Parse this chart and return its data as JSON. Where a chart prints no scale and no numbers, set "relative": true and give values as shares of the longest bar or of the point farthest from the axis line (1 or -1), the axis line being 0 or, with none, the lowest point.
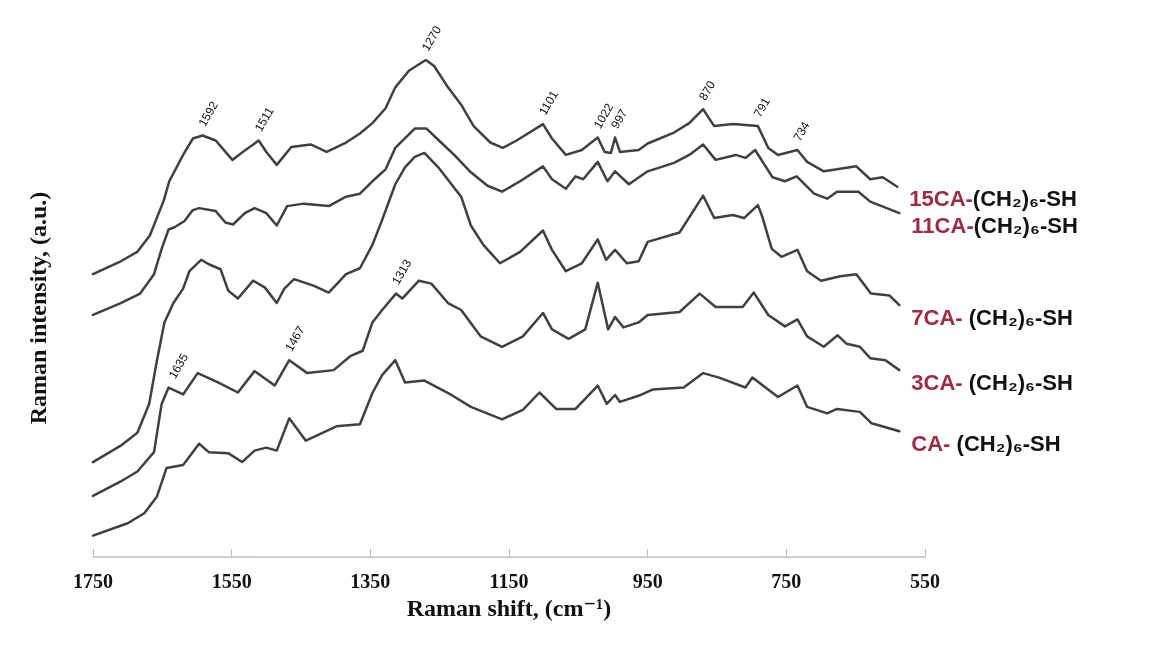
{
  "chart_data": {
    "type": "line",
    "relative": true,
    "xlabel": "Raman shift, (cm⁻¹)",
    "ylabel": "Raman intensity, (a.u.)",
    "xlim": [
      1750,
      550
    ],
    "xticks": [
      1750,
      1550,
      1350,
      1150,
      950,
      750,
      550
    ],
    "grid": false,
    "legend": false,
    "marker": "none",
    "line_style": "solid",
    "series": [
      {
        "name": "15CA-(CH₂)₆-SH",
        "color": "#404040",
        "x": [
          1750,
          1710,
          1686,
          1668,
          1648,
          1640,
          1620,
          1606,
          1592,
          1573,
          1549,
          1534,
          1511,
          1500,
          1485,
          1464,
          1436,
          1413,
          1385,
          1365,
          1347,
          1328,
          1314,
          1294,
          1270,
          1258,
          1238,
          1219,
          1201,
          1177,
          1159,
          1139,
          1101,
          1088,
          1068,
          1045,
          1022,
          1012,
          1003,
          997,
          990,
          963,
          950,
          912,
          890,
          870,
          854,
          827,
          791,
          776,
          762,
          734,
          720,
          696,
          677,
          649,
          629,
          611,
          590
        ],
        "values": [
          0.569,
          0.595,
          0.614,
          0.647,
          0.717,
          0.756,
          0.809,
          0.842,
          0.848,
          0.838,
          0.799,
          0.815,
          0.838,
          0.815,
          0.789,
          0.825,
          0.83,
          0.815,
          0.834,
          0.852,
          0.873,
          0.903,
          0.945,
          0.979,
          1,
          0.988,
          0.945,
          0.91,
          0.867,
          0.834,
          0.823,
          0.838,
          0.871,
          0.842,
          0.809,
          0.819,
          0.844,
          0.815,
          0.813,
          0.844,
          0.815,
          0.819,
          0.832,
          0.854,
          0.873,
          0.901,
          0.867,
          0.871,
          0.867,
          0.823,
          0.809,
          0.819,
          0.795,
          0.776,
          0.78,
          0.786,
          0.76,
          0.764,
          0.745
        ]
      },
      {
        "name": "11CA-(CH₂)₆-SH",
        "color": "#404040",
        "x": [
          1750,
          1710,
          1682,
          1662,
          1651,
          1641,
          1633,
          1618,
          1606,
          1597,
          1573,
          1559,
          1548,
          1531,
          1517,
          1500,
          1485,
          1470,
          1446,
          1410,
          1385,
          1365,
          1347,
          1328,
          1314,
          1286,
          1269,
          1248,
          1229,
          1205,
          1181,
          1160,
          1134,
          1101,
          1088,
          1068,
          1054,
          1043,
          1022,
          1008,
          997,
          977,
          950,
          912,
          890,
          870,
          852,
          823,
          809,
          795,
          770,
          752,
          735,
          710,
          691,
          677,
          646,
          629,
          587
        ],
        "values": [
          0.487,
          0.511,
          0.53,
          0.569,
          0.62,
          0.659,
          0.663,
          0.676,
          0.698,
          0.702,
          0.696,
          0.673,
          0.669,
          0.692,
          0.702,
          0.692,
          0.667,
          0.706,
          0.711,
          0.706,
          0.725,
          0.731,
          0.756,
          0.78,
          0.823,
          0.862,
          0.862,
          0.834,
          0.809,
          0.774,
          0.747,
          0.735,
          0.756,
          0.786,
          0.76,
          0.741,
          0.766,
          0.76,
          0.795,
          0.756,
          0.776,
          0.75,
          0.776,
          0.793,
          0.809,
          0.83,
          0.799,
          0.809,
          0.803,
          0.819,
          0.764,
          0.756,
          0.766,
          0.731,
          0.721,
          0.735,
          0.735,
          0.715,
          0.692
        ]
      },
      {
        "name": "7CA- (CH₂)₆-SH",
        "color": "#404040",
        "x": [
          1750,
          1710,
          1686,
          1669,
          1658,
          1647,
          1634,
          1620,
          1611,
          1594,
          1583,
          1566,
          1555,
          1541,
          1519,
          1502,
          1485,
          1474,
          1460,
          1432,
          1410,
          1385,
          1365,
          1347,
          1333,
          1314,
          1300,
          1286,
          1272,
          1252,
          1233,
          1219,
          1205,
          1187,
          1163,
          1134,
          1101,
          1088,
          1068,
          1045,
          1022,
          1010,
          997,
          980,
          963,
          950,
          904,
          870,
          854,
          827,
          811,
          791,
          785,
          771,
          757,
          734,
          720,
          700,
          672,
          649,
          628,
          601,
          587
        ],
        "values": [
          0.191,
          0.224,
          0.25,
          0.308,
          0.394,
          0.472,
          0.511,
          0.54,
          0.575,
          0.598,
          0.589,
          0.579,
          0.536,
          0.52,
          0.556,
          0.542,
          0.511,
          0.54,
          0.559,
          0.546,
          0.532,
          0.569,
          0.581,
          0.628,
          0.678,
          0.75,
          0.784,
          0.805,
          0.813,
          0.784,
          0.75,
          0.725,
          0.667,
          0.628,
          0.591,
          0.614,
          0.657,
          0.618,
          0.575,
          0.591,
          0.639,
          0.598,
          0.618,
          0.591,
          0.595,
          0.634,
          0.653,
          0.727,
          0.682,
          0.688,
          0.682,
          0.708,
          0.686,
          0.62,
          0.604,
          0.618,
          0.575,
          0.556,
          0.565,
          0.569,
          0.53,
          0.526,
          0.507
        ]
      },
      {
        "name": "3CA- (CH₂)₆-SH",
        "color": "#404040",
        "x": [
          1750,
          1710,
          1686,
          1662,
          1651,
          1641,
          1620,
          1599,
          1569,
          1541,
          1517,
          1488,
          1467,
          1441,
          1403,
          1379,
          1361,
          1347,
          1333,
          1313,
          1304,
          1280,
          1262,
          1238,
          1219,
          1191,
          1160,
          1130,
          1101,
          1088,
          1064,
          1040,
          1022,
          1007,
          997,
          985,
          963,
          950,
          904,
          875,
          852,
          813,
          797,
          776,
          752,
          734,
          720,
          696,
          676,
          663,
          644,
          629,
          607,
          587
        ],
        "values": [
          0.123,
          0.152,
          0.172,
          0.211,
          0.308,
          0.341,
          0.327,
          0.37,
          0.351,
          0.331,
          0.374,
          0.345,
          0.396,
          0.37,
          0.376,
          0.404,
          0.415,
          0.472,
          0.497,
          0.53,
          0.52,
          0.556,
          0.55,
          0.511,
          0.497,
          0.444,
          0.423,
          0.444,
          0.491,
          0.458,
          0.439,
          0.458,
          0.552,
          0.458,
          0.483,
          0.462,
          0.472,
          0.487,
          0.493,
          0.53,
          0.503,
          0.503,
          0.532,
          0.487,
          0.464,
          0.478,
          0.444,
          0.423,
          0.446,
          0.429,
          0.423,
          0.4,
          0.396,
          0.376
        ]
      },
      {
        "name": "CA- (CH₂)₆-SH",
        "color": "#404040",
        "x": [
          1750,
          1700,
          1676,
          1658,
          1644,
          1620,
          1597,
          1583,
          1555,
          1535,
          1517,
          1500,
          1485,
          1467,
          1443,
          1399,
          1365,
          1347,
          1333,
          1314,
          1300,
          1272,
          1233,
          1205,
          1160,
          1130,
          1106,
          1082,
          1054,
          1022,
          1009,
          997,
          990,
          960,
          943,
          898,
          870,
          847,
          809,
          799,
          762,
          734,
          720,
          691,
          677,
          644,
          627,
          587
        ],
        "values": [
          0.043,
          0.068,
          0.088,
          0.121,
          0.179,
          0.185,
          0.228,
          0.211,
          0.209,
          0.191,
          0.214,
          0.22,
          0.214,
          0.279,
          0.234,
          0.263,
          0.267,
          0.33,
          0.366,
          0.396,
          0.351,
          0.355,
          0.326,
          0.302,
          0.277,
          0.296,
          0.331,
          0.298,
          0.298,
          0.345,
          0.308,
          0.326,
          0.312,
          0.326,
          0.337,
          0.341,
          0.37,
          0.361,
          0.341,
          0.361,
          0.322,
          0.345,
          0.302,
          0.289,
          0.298,
          0.292,
          0.269,
          0.253
        ]
      }
    ],
    "annotations": [
      {
        "text": "1592",
        "x": 1592,
        "y": 0.848
      },
      {
        "text": "1511",
        "x": 1511,
        "y": 0.838
      },
      {
        "text": "1270",
        "x": 1270,
        "y": 1
      },
      {
        "text": "1101",
        "x": 1101,
        "y": 0.871
      },
      {
        "text": "1022",
        "x": 1022,
        "y": 0.844
      },
      {
        "text": "997",
        "x": 997,
        "y": 0.844
      },
      {
        "text": "870",
        "x": 870,
        "y": 0.901
      },
      {
        "text": "791",
        "x": 791,
        "y": 0.867
      },
      {
        "text": "734",
        "x": 734,
        "y": 0.819
      },
      {
        "text": "1313",
        "x": 1313,
        "y": 0.53
      },
      {
        "text": "1635",
        "x": 1635,
        "y": 0.341
      },
      {
        "text": "1467",
        "x": 1467,
        "y": 0.396
      }
    ]
  }
}
